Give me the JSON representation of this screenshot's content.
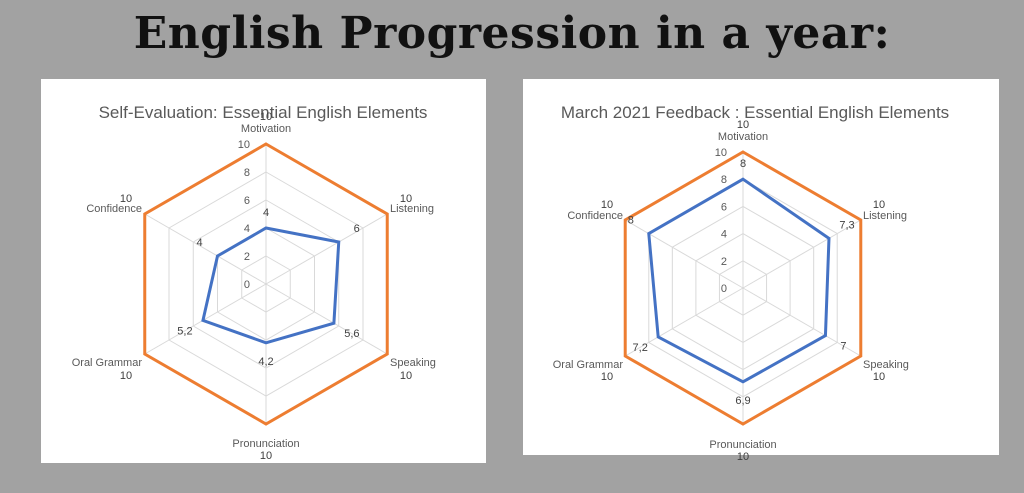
{
  "page": {
    "title": "English Progression in a year:"
  },
  "colors": {
    "background": "#a2a2a2",
    "panel": "#ffffff",
    "max_series": "#ed7d31",
    "score_series": "#4472c4",
    "grid": "#d9d9d9"
  },
  "chart_data": [
    {
      "type": "radar",
      "title": "Self-Evaluation: Essential English Elements",
      "categories": [
        "Motivation",
        "Listening",
        "Speaking",
        "Pronunciation",
        "Oral Grammar",
        "Confidence"
      ],
      "rlim": [
        0,
        10
      ],
      "ticks": [
        "0",
        "2",
        "4",
        "6",
        "8",
        "10"
      ],
      "grid": true,
      "series": [
        {
          "values": [
            10,
            10,
            10,
            10,
            10,
            10
          ],
          "labels": [
            "10",
            "10",
            "10",
            "10",
            "10",
            "10"
          ],
          "color": "#ed7d31"
        },
        {
          "values": [
            4,
            6,
            5.6,
            4.2,
            5.2,
            4
          ],
          "labels": [
            "4",
            "6",
            "5,6",
            "4,2",
            "5,2",
            "4"
          ],
          "color": "#4472c4"
        }
      ]
    },
    {
      "type": "radar",
      "title": "March 2021 Feedback : Essential English Elements",
      "categories": [
        "Motivation",
        "Listening",
        "Speaking",
        "Pronunciation",
        "Oral Grammar",
        "Confidence"
      ],
      "rlim": [
        0,
        10
      ],
      "ticks": [
        "0",
        "2",
        "4",
        "6",
        "8",
        "10"
      ],
      "grid": true,
      "series": [
        {
          "values": [
            10,
            10,
            10,
            10,
            10,
            10
          ],
          "labels": [
            "10",
            "10",
            "10",
            "10",
            "10",
            "10"
          ],
          "color": "#ed7d31"
        },
        {
          "values": [
            8,
            7.3,
            7,
            6.9,
            7.2,
            8
          ],
          "labels": [
            "8",
            "7,3",
            "7",
            "6,9",
            "7,2",
            "8"
          ],
          "color": "#4472c4"
        }
      ]
    }
  ]
}
